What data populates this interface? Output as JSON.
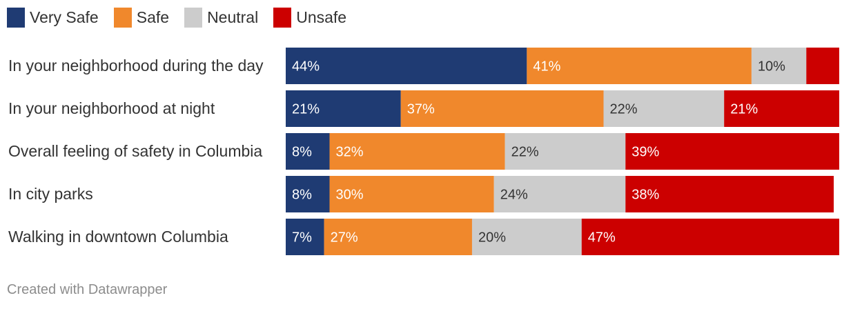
{
  "colors": {
    "very_safe": "#1f3b73",
    "safe": "#f0882c",
    "neutral": "#cccccc",
    "unsafe": "#cc0000",
    "label_on_dark": "#ffffff",
    "label_on_light": "#333333"
  },
  "chart_data": {
    "type": "bar",
    "orientation": "horizontal",
    "stacked": true,
    "xlim": [
      0,
      100
    ],
    "legend_position": "top-left",
    "categories": [
      "In your neighborhood during the day",
      "In your neighborhood at night",
      "Overall feeling of safety in Columbia",
      "In city parks",
      "Walking in downtown Columbia"
    ],
    "series": [
      {
        "name": "Very Safe",
        "color_key": "very_safe",
        "values": [
          44,
          21,
          8,
          8,
          7
        ],
        "labels": [
          "44%",
          "21%",
          "8%",
          "8%",
          "7%"
        ]
      },
      {
        "name": "Safe",
        "color_key": "safe",
        "values": [
          41,
          37,
          32,
          30,
          27
        ],
        "labels": [
          "41%",
          "37%",
          "32%",
          "30%",
          "27%"
        ]
      },
      {
        "name": "Neutral",
        "color_key": "neutral",
        "values": [
          10,
          22,
          22,
          24,
          20
        ],
        "labels": [
          "10%",
          "22%",
          "22%",
          "24%",
          "20%"
        ]
      },
      {
        "name": "Unsafe",
        "color_key": "unsafe",
        "values": [
          6,
          21,
          39,
          38,
          47
        ],
        "labels": [
          "",
          "21%",
          "39%",
          "38%",
          "47%"
        ]
      }
    ]
  },
  "footer": "Created with Datawrapper"
}
